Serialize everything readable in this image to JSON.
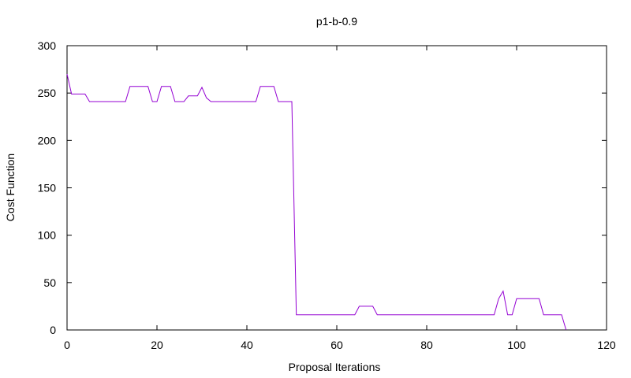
{
  "chart_data": {
    "type": "line",
    "title": "p1-b-0.9",
    "xlabel": "Proposal Iterations",
    "ylabel": "Cost Function",
    "xlim": [
      0,
      120
    ],
    "ylim": [
      0,
      300
    ],
    "xticks": [
      "0",
      "20",
      "40",
      "60",
      "80",
      "100",
      "120"
    ],
    "yticks": [
      "0",
      "50",
      "100",
      "150",
      "200",
      "250",
      "300"
    ],
    "grid": false,
    "line_color": "#9400d3",
    "series": [
      {
        "x": [
          0,
          1,
          2,
          3,
          4,
          5,
          6,
          7,
          8,
          9,
          10,
          11,
          12,
          13,
          14,
          15,
          16,
          17,
          18,
          19,
          20,
          21,
          22,
          23,
          24,
          25,
          26,
          27,
          28,
          29,
          30,
          31,
          32,
          33,
          34,
          35,
          36,
          37,
          38,
          39,
          40,
          41,
          42,
          43,
          44,
          45,
          46,
          47,
          48,
          49,
          50,
          51,
          52,
          53,
          54,
          55,
          56,
          57,
          58,
          59,
          60,
          61,
          62,
          63,
          64,
          65,
          66,
          67,
          68,
          69,
          70,
          75,
          80,
          85,
          90,
          95,
          96,
          97,
          98,
          99,
          100,
          101,
          102,
          103,
          104,
          105,
          106,
          107,
          108,
          109,
          110,
          111
        ],
        "y": [
          270,
          249,
          249,
          249,
          249,
          241,
          241,
          241,
          241,
          241,
          241,
          241,
          241,
          241,
          257,
          257,
          257,
          257,
          257,
          241,
          241,
          257,
          257,
          257,
          241,
          241,
          241,
          247,
          247,
          247,
          256,
          245,
          241,
          241,
          241,
          241,
          241,
          241,
          241,
          241,
          241,
          241,
          241,
          257,
          257,
          257,
          257,
          241,
          241,
          241,
          241,
          16,
          16,
          16,
          16,
          16,
          16,
          16,
          16,
          16,
          16,
          16,
          16,
          16,
          16,
          25,
          25,
          25,
          25,
          16,
          16,
          16,
          16,
          16,
          16,
          16,
          33,
          41,
          16,
          16,
          33,
          33,
          33,
          33,
          33,
          33,
          16,
          16,
          16,
          16,
          16,
          0
        ]
      }
    ]
  }
}
